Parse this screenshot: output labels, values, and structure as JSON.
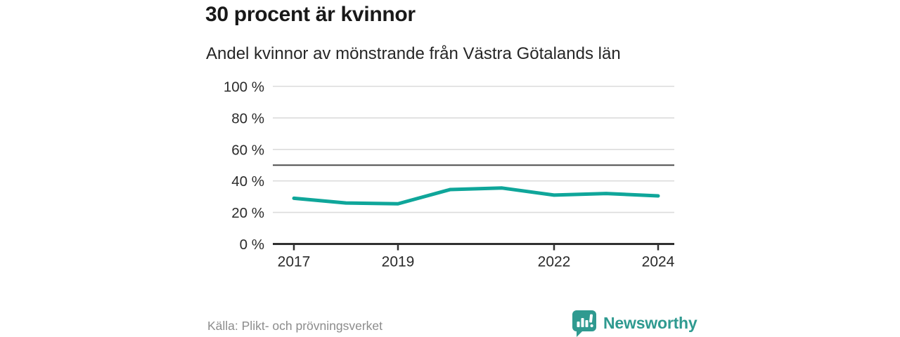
{
  "header": {
    "title": "30 procent är kvinnor",
    "subtitle": "Andel kvinnor av mönstrande från Västra Götalands län"
  },
  "footer": {
    "source": "Källa: Plikt- och prövningsverket",
    "brand": "Newsworthy",
    "brand_icon": "bar-chart-speech-bubble-icon"
  },
  "colors": {
    "line": "#0fa69a",
    "reference_line": "#4d4d4d",
    "grid": "#dcdcdc",
    "axis": "#303030",
    "tick_label": "#2b2b2b",
    "title": "#191919",
    "subtitle": "#262626",
    "source": "#8c8c8c",
    "brand": "#2f9a90"
  },
  "chart_data": {
    "type": "line",
    "title": "30 procent är kvinnor",
    "subtitle": "Andel kvinnor av mönstrande från Västra Götalands län",
    "x": [
      2017,
      2018,
      2019,
      2020,
      2021,
      2022,
      2023,
      2024
    ],
    "series": [
      {
        "name": "Andel kvinnor av mönstrande",
        "values": [
          29,
          26,
          25.5,
          34.5,
          35.5,
          31,
          32,
          30.5
        ]
      }
    ],
    "ylim": [
      0,
      100
    ],
    "yticks": [
      0,
      20,
      40,
      60,
      80,
      100
    ],
    "ytick_suffix": " %",
    "xticks": [
      2017,
      2019,
      2022,
      2024
    ],
    "reference_line": 50,
    "grid": true,
    "legend_position": "none"
  }
}
